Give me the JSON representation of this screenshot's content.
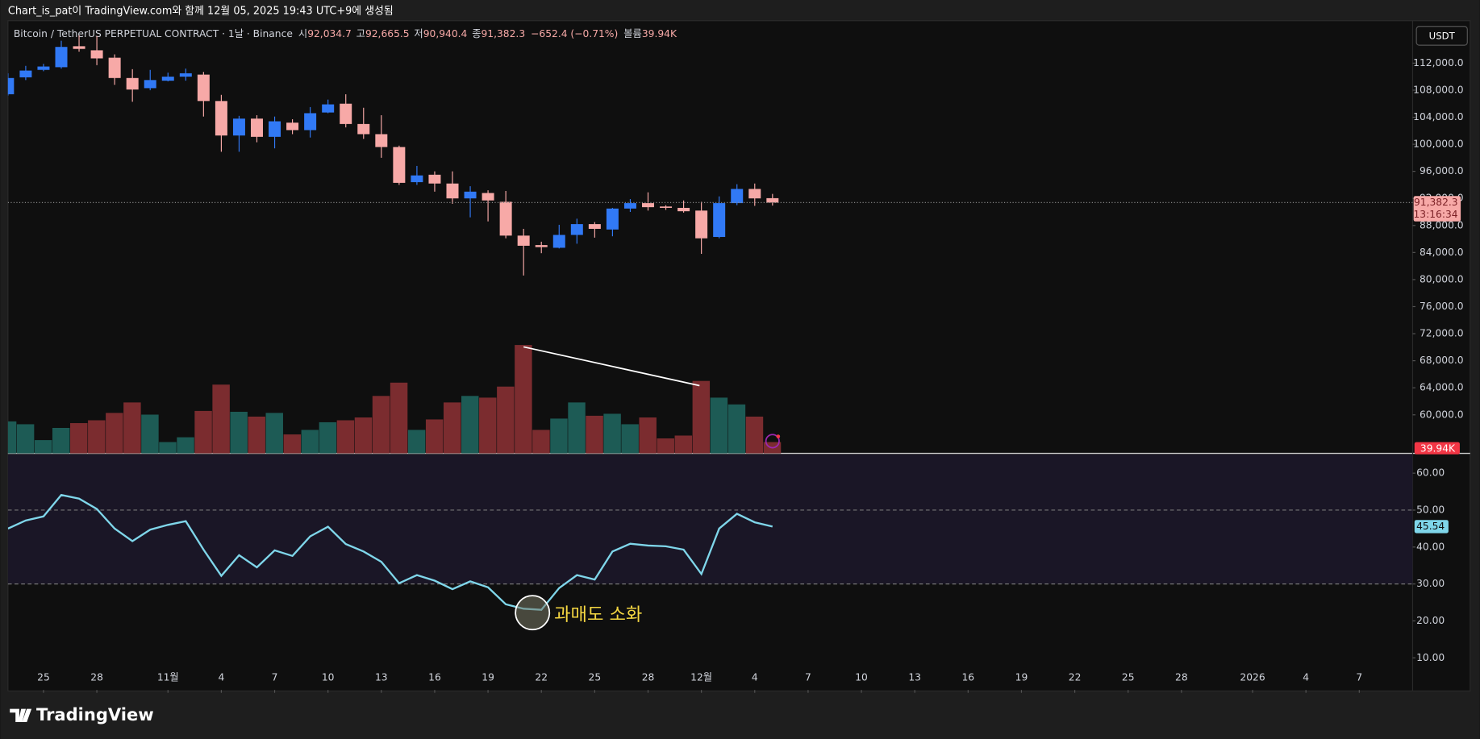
{
  "header": {
    "caption": "Chart_is_pat이 TradingView.com와 함께 12월 05, 2025 19:43 UTC+9에 생성됨"
  },
  "legend": {
    "symbol": "Bitcoin / TetherUS PERPETUAL CONTRACT · 1날 · Binance",
    "labels": [
      "시",
      "고",
      "저",
      "종"
    ],
    "values": [
      "92,034.7",
      "92,665.5",
      "90,940.4",
      "91,382.3"
    ],
    "change": "−652.4 (−0.71%)",
    "volume_label": "볼륨",
    "volume": "39.94K"
  },
  "currency": "USDT",
  "logo": "TradingView",
  "chart_data": {
    "type": "candlestick",
    "x": [
      "2025-10-23",
      "2025-10-24",
      "2025-10-25",
      "2025-10-26",
      "2025-10-27",
      "2025-10-28",
      "2025-10-29",
      "2025-10-30",
      "2025-10-31",
      "2025-11-01",
      "2025-11-02",
      "2025-11-03",
      "2025-11-04",
      "2025-11-05",
      "2025-11-06",
      "2025-11-07",
      "2025-11-08",
      "2025-11-09",
      "2025-11-10",
      "2025-11-11",
      "2025-11-12",
      "2025-11-13",
      "2025-11-14",
      "2025-11-15",
      "2025-11-16",
      "2025-11-17",
      "2025-11-18",
      "2025-11-19",
      "2025-11-20",
      "2025-11-21",
      "2025-11-22",
      "2025-11-23",
      "2025-11-24",
      "2025-11-25",
      "2025-11-26",
      "2025-11-27",
      "2025-11-28",
      "2025-11-29",
      "2025-11-30",
      "2025-12-01",
      "2025-12-02",
      "2025-12-03",
      "2025-12-04",
      "2025-12-05"
    ],
    "open": [
      107400,
      109900,
      111000,
      111400,
      114500,
      113900,
      112800,
      109800,
      108300,
      109400,
      110000,
      110300,
      106400,
      101300,
      103800,
      101100,
      103200,
      102100,
      104700,
      106000,
      103000,
      101500,
      99600,
      94400,
      95500,
      94200,
      92000,
      92800,
      91500,
      86500,
      85100,
      84700,
      86600,
      88200,
      87400,
      90500,
      91300,
      90800,
      90600,
      90200,
      86300,
      91300,
      93400,
      92034.7
    ],
    "high": [
      110500,
      111600,
      111900,
      115300,
      116100,
      116000,
      113300,
      111100,
      111000,
      110600,
      111200,
      110700,
      107300,
      104200,
      104300,
      104100,
      103700,
      105500,
      106600,
      107400,
      105400,
      104300,
      99800,
      96800,
      96000,
      96000,
      93800,
      93200,
      93100,
      87500,
      85600,
      88100,
      89000,
      88500,
      90600,
      91900,
      92900,
      91000,
      91700,
      91500,
      92300,
      94100,
      94200,
      92665.5
    ],
    "low": [
      107200,
      109500,
      110800,
      111200,
      113700,
      111700,
      108800,
      106300,
      108000,
      109300,
      109400,
      104100,
      98900,
      98900,
      100300,
      99400,
      101500,
      101000,
      104600,
      102500,
      100800,
      98000,
      94000,
      94000,
      93000,
      91200,
      89200,
      88600,
      86100,
      80600,
      83900,
      84600,
      85300,
      86200,
      86400,
      90000,
      90200,
      90300,
      89900,
      83800,
      86100,
      91000,
      90900,
      90940.4
    ],
    "close": [
      109800,
      110900,
      111500,
      114400,
      114100,
      112700,
      109800,
      108100,
      109500,
      110000,
      110500,
      106400,
      101300,
      103800,
      101100,
      103400,
      102100,
      104600,
      105900,
      103000,
      101500,
      99600,
      94300,
      95400,
      94200,
      92000,
      93000,
      91700,
      86500,
      85000,
      84800,
      86600,
      88200,
      87500,
      90500,
      91300,
      90700,
      90600,
      90100,
      86100,
      91300,
      93400,
      92000,
      91382.3
    ],
    "volume": [
      113000,
      103000,
      47000,
      90000,
      107000,
      117000,
      143000,
      180000,
      137000,
      40000,
      57000,
      150000,
      243000,
      147000,
      130000,
      143000,
      67000,
      83000,
      110000,
      117000,
      127000,
      203000,
      250000,
      83000,
      120000,
      180000,
      203000,
      197000,
      236000,
      383000,
      83000,
      123000,
      180000,
      133000,
      140000,
      103000,
      127000,
      53000,
      63000,
      256000,
      197000,
      173000,
      130000,
      39940
    ],
    "last_volume_label": "39.94K",
    "up_color": "#3179f5",
    "down_color": "#f7a9a7",
    "volume_up_color": "#1d5b55",
    "volume_down_color": "#7b2c2f",
    "price_label": "91,382.3",
    "countdown": "13:16:34",
    "xlim": [
      "2025-10-23",
      "2026-01-10"
    ],
    "xticks": [
      {
        "value": "2025-10-25",
        "label": "25"
      },
      {
        "value": "2025-10-28",
        "label": "28"
      },
      {
        "value": "2025-11-01",
        "label": "11월"
      },
      {
        "value": "2025-11-04",
        "label": "4"
      },
      {
        "value": "2025-11-07",
        "label": "7"
      },
      {
        "value": "2025-11-10",
        "label": "10"
      },
      {
        "value": "2025-11-13",
        "label": "13"
      },
      {
        "value": "2025-11-16",
        "label": "16"
      },
      {
        "value": "2025-11-19",
        "label": "19"
      },
      {
        "value": "2025-11-22",
        "label": "22"
      },
      {
        "value": "2025-11-25",
        "label": "25"
      },
      {
        "value": "2025-11-28",
        "label": "28"
      },
      {
        "value": "2025-12-01",
        "label": "12월"
      },
      {
        "value": "2025-12-04",
        "label": "4"
      },
      {
        "value": "2025-12-07",
        "label": "7"
      },
      {
        "value": "2025-12-10",
        "label": "10"
      },
      {
        "value": "2025-12-13",
        "label": "13"
      },
      {
        "value": "2025-12-16",
        "label": "16"
      },
      {
        "value": "2025-12-19",
        "label": "19"
      },
      {
        "value": "2025-12-22",
        "label": "22"
      },
      {
        "value": "2025-12-25",
        "label": "25"
      },
      {
        "value": "2025-12-28",
        "label": "28"
      },
      {
        "value": "2026-01-01",
        "label": "2026"
      },
      {
        "value": "2026-01-04",
        "label": "4"
      },
      {
        "value": "2026-01-07",
        "label": "7"
      }
    ],
    "ylim": [
      54300,
      118270
    ],
    "yticks": [
      {
        "value": 60000,
        "label": "60,000.0"
      },
      {
        "value": 64000,
        "label": "64,000.0"
      },
      {
        "value": 68000,
        "label": "68,000.0"
      },
      {
        "value": 72000,
        "label": "72,000.0"
      },
      {
        "value": 76000,
        "label": "76,000.0"
      },
      {
        "value": 80000,
        "label": "80,000.0"
      },
      {
        "value": 84000,
        "label": "84,000.0"
      },
      {
        "value": 88000,
        "label": "88,000.0"
      },
      {
        "value": 92000,
        "label": "92,000.0"
      },
      {
        "value": 96000,
        "label": "96,000.0"
      },
      {
        "value": 100000,
        "label": "100,000.0"
      },
      {
        "value": 104000,
        "label": "104,000.0"
      },
      {
        "value": 108000,
        "label": "108,000.0"
      },
      {
        "value": 112000,
        "label": "112,000.0"
      }
    ],
    "rsi": {
      "color": "#7fd6ea",
      "values": [
        45.0,
        47.2,
        48.3,
        54.1,
        53.1,
        50.3,
        45.0,
        41.6,
        44.7,
        46.0,
        47.0,
        39.3,
        32.2,
        37.8,
        34.5,
        39.1,
        37.6,
        42.9,
        45.5,
        40.8,
        38.8,
        36.0,
        30.2,
        32.4,
        30.9,
        28.6,
        30.7,
        29.1,
        24.5,
        23.3,
        23.0,
        28.9,
        32.4,
        31.2,
        38.8,
        40.9,
        40.4,
        40.2,
        39.3,
        32.7,
        45.0,
        49.0,
        46.7,
        45.54
      ],
      "last_label": "45.54",
      "ylim": [
        1.3,
        65.1
      ],
      "yticks": [
        {
          "value": 10,
          "label": "10.00"
        },
        {
          "value": 20,
          "label": "20.00"
        },
        {
          "value": 30,
          "label": "30.00"
        },
        {
          "value": 40,
          "label": "40.00"
        },
        {
          "value": 50,
          "label": "50.00"
        },
        {
          "value": 60,
          "label": "60.00"
        }
      ],
      "levels": [
        30,
        50
      ],
      "band": [
        30,
        70
      ],
      "annotation": "과매도 소화"
    }
  }
}
